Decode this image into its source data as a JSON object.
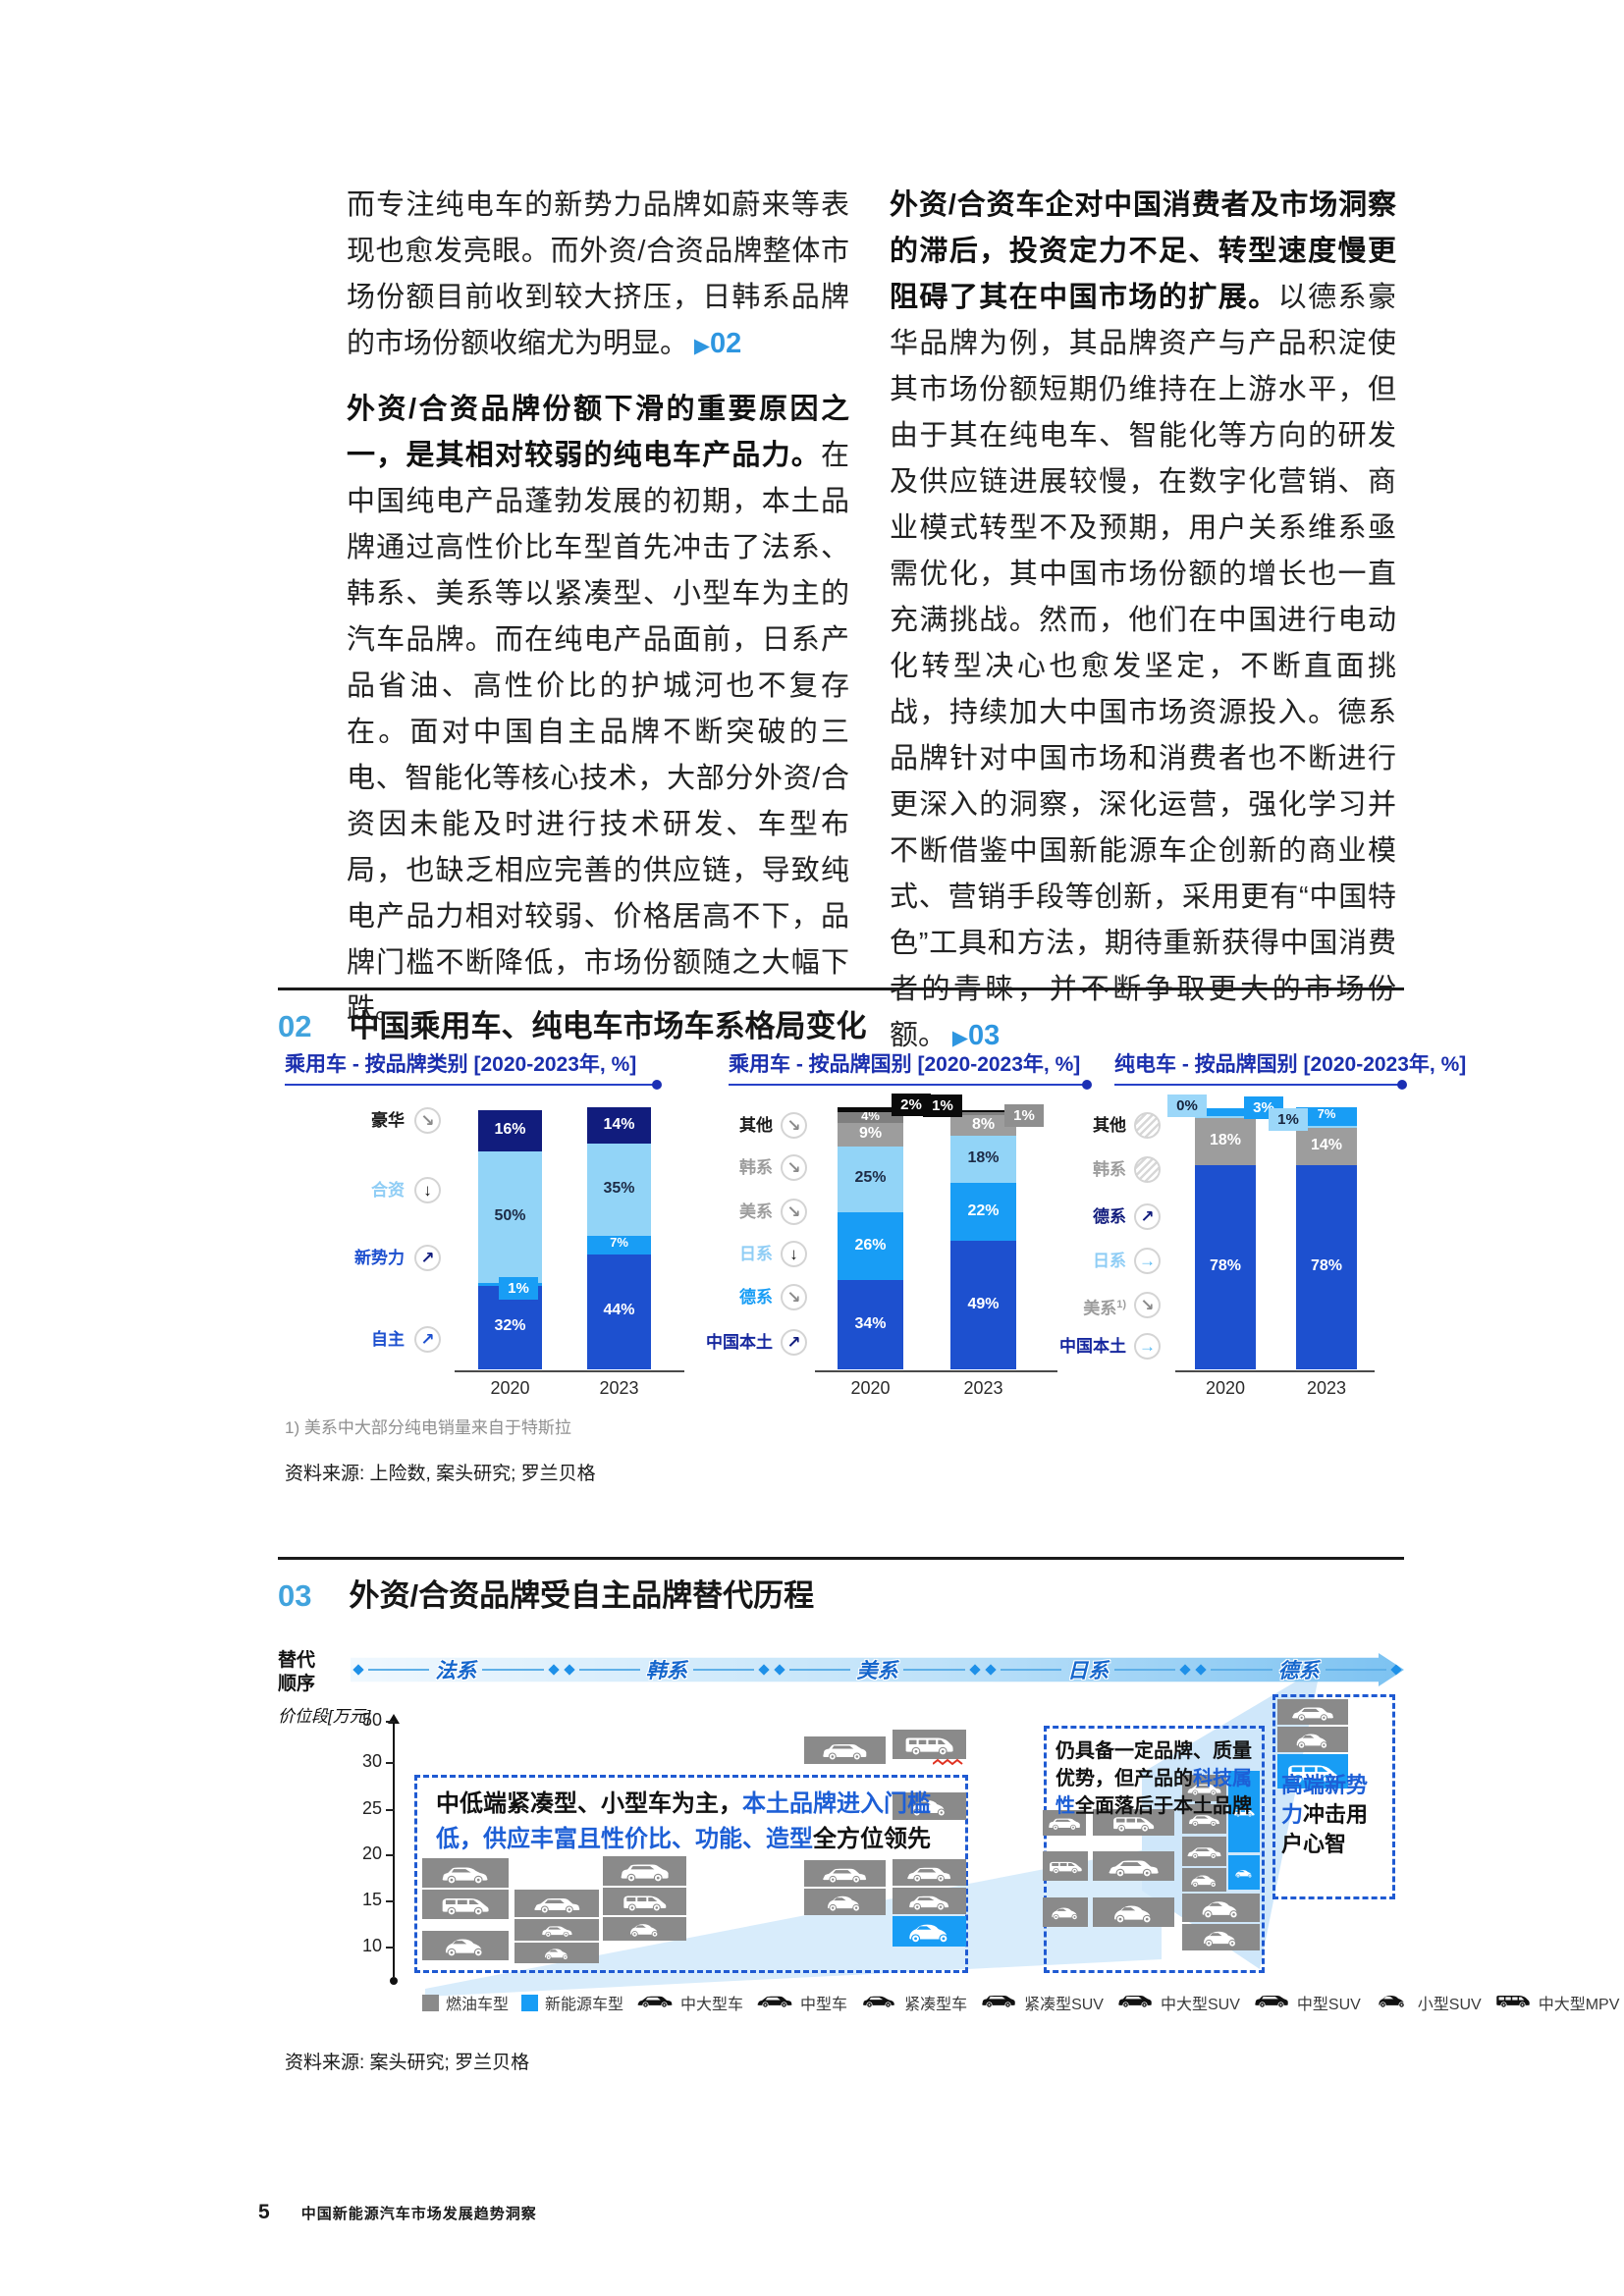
{
  "columns": {
    "left": {
      "p1": [
        {
          "t": "而专注纯电车的新势力品牌如蔚来等表现也愈发亮眼。而外资/合资品牌整体市场份额目前收到较大挤压，日韩系品牌的市场份额收缩尤为明显。",
          "s": "normal"
        },
        {
          "t": " ▶",
          "s": "marker-tri"
        },
        {
          "t": "02",
          "s": "marker-num"
        }
      ],
      "p2": [
        {
          "t": "外资/合资品牌份额下滑的重要原因之一，是其相对较弱的纯电车产品力。",
          "s": "bold"
        },
        {
          "t": "在中国纯电产品蓬勃发展的初期，本土品牌通过高性价比车型首先冲击了法系、韩系、美系等以紧凑型、小型车为主的汽车品牌。而在纯电产品面前，日系产品省油、高性价比的护城河也不复存在。面对中国自主品牌不断突破的三电、智能化等核心技术，大部分外资/合资因未能及时进行技术研发、车型布局，也缺乏相应完善的供应链，导致纯电产品力相对较弱、价格居高不下，品牌门槛不断降低，市场份额随之大幅下跌。",
          "s": "normal"
        }
      ]
    },
    "right": {
      "p1": [
        {
          "t": "外资/合资车企对中国消费者及市场洞察的滞后，投资定力不足、转型速度慢更阻碍了其在中国市场的扩展。",
          "s": "bold"
        },
        {
          "t": "以德系豪华品牌为例，其品牌资产与产品积淀使其市场份额短期仍维持在上游水平，但由于其在纯电车、智能化等方向的研发及供应链进展较慢，在数字化营销、商业模式转型不及预期，用户关系维系亟需优化，其中国市场份额的增长也一直充满挑战。然而，他们在中国进行电动化转型决心也愈发坚定，不断直面挑战，持续加大中国市场资源投入。德系品牌针对中国市场和消费者也不断进行更深入的洞察，深化运营，强化学习并不断借鉴中国新能源车企创新的商业模式、营销手段等创新，采用更有“中国特色”工具和方法，期待重新获得中国消费者的青睐，并不断争取更大的市场份额。",
          "s": "normal"
        },
        {
          "t": " ▶",
          "s": "marker-tri"
        },
        {
          "t": "03",
          "s": "marker-num"
        }
      ]
    }
  },
  "figure02": {
    "number": "02",
    "title": "中国乘用车、纯电车市场车系格局变化",
    "footnote": "1) 美系中大部分纯电销量来自于特斯拉",
    "source": "资料来源: 上险数, 案头研究; 罗兰贝格"
  },
  "figure03": {
    "number": "03",
    "title": "外资/合资品牌受自主品牌替代历程",
    "sequence_label": "替代\n顺序",
    "axis_label": "价位段[万元]",
    "source": "资料来源:  案头研究; 罗兰贝格"
  },
  "footer": {
    "page_number": "5",
    "text": "中国新能源汽车市场发展趋势洞察"
  },
  "chart_data": [
    {
      "type": "bar",
      "stacked": true,
      "title": "乘用车 - 按品牌类别 [2020-2023年, %]",
      "categories": [
        "2020",
        "2023"
      ],
      "ylim": [
        0,
        100
      ],
      "legend_position": "left",
      "series": [
        {
          "name": "豪华",
          "color": "#111c7d",
          "text_color": "#1a1a1a",
          "icon": "arrow-dr",
          "icon_color": "#8a8a8a",
          "values": [
            16,
            14
          ],
          "labels": [
            {
              "t": "16%",
              "mode": "in",
              "fg": "#ffffff"
            },
            {
              "t": "14%",
              "mode": "in",
              "fg": "#ffffff"
            }
          ]
        },
        {
          "name": "合资",
          "color": "#92d4f7",
          "text_color": "#8fcdf5",
          "icon": "arrow-d",
          "icon_color": "#111111",
          "values": [
            50,
            35
          ],
          "labels": [
            {
              "t": "50%",
              "mode": "in",
              "fg": "#1d2b46"
            },
            {
              "t": "35%",
              "mode": "in",
              "fg": "#1d2b46"
            }
          ]
        },
        {
          "name": "新势力",
          "color": "#189df5",
          "text_color": "#1d50cf",
          "icon": "arrow-ur",
          "icon_color": "#111c7d",
          "values": [
            1,
            7
          ],
          "labels": [
            {
              "t": "1%",
              "mode": "callout-in-right",
              "bg": "#189df5",
              "fg": "#ffffff",
              "dy": 2
            },
            {
              "t": "7%",
              "mode": "in",
              "fg": "#ffffff"
            }
          ]
        },
        {
          "name": "自主",
          "color": "#1d50cf",
          "text_color": "#1d50cf",
          "icon": "arrow-ur",
          "icon_color": "#1d50cf",
          "values": [
            32,
            44
          ],
          "labels": [
            {
              "t": "32%",
              "mode": "in",
              "fg": "#ffffff"
            },
            {
              "t": "44%",
              "mode": "in",
              "fg": "#ffffff"
            }
          ]
        }
      ]
    },
    {
      "type": "bar",
      "stacked": true,
      "title": "乘用车 - 按品牌国别 [2020-2023年, %]",
      "categories": [
        "2020",
        "2023"
      ],
      "ylim": [
        0,
        100
      ],
      "legend_position": "left",
      "series": [
        {
          "name": "其他",
          "color": "#0a0a0a",
          "text_color": "#1a1a1a",
          "icon": "arrow-dr",
          "icon_color": "#8a8a8a",
          "values": [
            2,
            1
          ],
          "labels": [
            {
              "t": "2%",
              "mode": "callout-right",
              "bg": "#0a0a0a",
              "fg": "#ffffff",
              "dy": -6
            },
            {
              "t": "1%",
              "mode": "callout-left",
              "bg": "#0a0a0a",
              "fg": "#ffffff",
              "dy": -8
            }
          ]
        },
        {
          "name": "韩系",
          "color": "#7f7f7f",
          "text_color": "#9d9d9d",
          "icon": "arrow-dr",
          "icon_color": "#8a8a8a",
          "values": [
            4,
            1
          ],
          "labels": [
            {
              "t": "4%",
              "mode": "in",
              "fg": "#ffffff"
            },
            {
              "t": "1%",
              "mode": "callout-right",
              "bg": "#8f8f8f",
              "fg": "#ffffff",
              "dy": 0
            }
          ]
        },
        {
          "name": "美系",
          "color": "#9d9d9d",
          "text_color": "#9d9d9d",
          "icon": "arrow-dr",
          "icon_color": "#8a8a8a",
          "values": [
            9,
            8
          ],
          "labels": [
            {
              "t": "9%",
              "mode": "in",
              "fg": "#ffffff"
            },
            {
              "t": "8%",
              "mode": "in",
              "fg": "#ffffff"
            }
          ]
        },
        {
          "name": "日系",
          "color": "#92d4f7",
          "text_color": "#8fcdf5",
          "icon": "arrow-d",
          "icon_color": "#111111",
          "values": [
            25,
            18
          ],
          "labels": [
            {
              "t": "25%",
              "mode": "in",
              "fg": "#1d2b46"
            },
            {
              "t": "18%",
              "mode": "in",
              "fg": "#1d2b46"
            }
          ]
        },
        {
          "name": "德系",
          "color": "#189df5",
          "text_color": "#189df5",
          "icon": "arrow-dr",
          "icon_color": "#8a8a8a",
          "values": [
            26,
            22
          ],
          "labels": [
            {
              "t": "26%",
              "mode": "in",
              "fg": "#ffffff"
            },
            {
              "t": "22%",
              "mode": "in",
              "fg": "#ffffff"
            }
          ]
        },
        {
          "name": "中国本土",
          "color": "#1d50cf",
          "text_color": "#16279e",
          "icon": "arrow-ur",
          "icon_color": "#111c7d",
          "values": [
            34,
            49
          ],
          "labels": [
            {
              "t": "34%",
              "mode": "in",
              "fg": "#ffffff"
            },
            {
              "t": "49%",
              "mode": "in",
              "fg": "#ffffff"
            }
          ]
        }
      ]
    },
    {
      "type": "bar",
      "stacked": true,
      "title": "纯电车 - 按品牌国别 [2020-2023年, %]",
      "categories": [
        "2020",
        "2023"
      ],
      "ylim": [
        0,
        100
      ],
      "legend_position": "left",
      "footnote_ref": "1) 美系中大部分纯电销量来自于特斯拉",
      "series": [
        {
          "name": "其他",
          "color": null,
          "text_color": "#1a1a1a",
          "icon": "hatch",
          "values": [
            null,
            null
          ],
          "labels": [
            null,
            null
          ]
        },
        {
          "name": "韩系",
          "color": null,
          "text_color": "#9d9d9d",
          "icon": "hatch",
          "values": [
            null,
            null
          ],
          "labels": [
            null,
            null
          ]
        },
        {
          "name": "德系",
          "color": "#189df5",
          "text_color": "#111c7d",
          "icon": "arrow-ur",
          "icon_color": "#111c7d",
          "values": [
            3,
            7
          ],
          "labels": [
            {
              "t": "3%",
              "mode": "callout-right",
              "bg": "#189df5",
              "fg": "#ffffff",
              "dy": -4
            },
            {
              "t": "7%",
              "mode": "in",
              "fg": "#ffffff"
            }
          ]
        },
        {
          "name": "日系",
          "color": "#92d4f7",
          "text_color": "#8fcdf5",
          "icon": "arrow-r",
          "icon_color": "#55b8f2",
          "values": [
            0,
            1
          ],
          "labels": [
            {
              "t": "0%",
              "mode": "callout-left",
              "bg": "#9bd7f9",
              "fg": "#16233c",
              "dy": -14
            },
            {
              "t": "1%",
              "mode": "callout-left",
              "bg": "#9bd7f9",
              "fg": "#16233c",
              "dy": -10
            }
          ]
        },
        {
          "name": "美系",
          "sup": "1)",
          "color": "#9d9d9d",
          "text_color": "#9d9d9d",
          "icon": "arrow-dr",
          "icon_color": "#8a8a8a",
          "values": [
            18,
            14
          ],
          "labels": [
            {
              "t": "18%",
              "mode": "in",
              "fg": "#ffffff"
            },
            {
              "t": "14%",
              "mode": "in",
              "fg": "#ffffff"
            }
          ]
        },
        {
          "name": "中国本土",
          "color": "#1d50cf",
          "text_color": "#16279e",
          "icon": "arrow-r",
          "icon_color": "#55b8f2",
          "values": [
            78,
            78
          ],
          "labels": [
            {
              "t": "78%",
              "mode": "in",
              "fg": "#ffffff"
            },
            {
              "t": "78%",
              "mode": "in",
              "fg": "#ffffff"
            }
          ]
        }
      ]
    },
    {
      "type": "diagram",
      "title": "外资/合资品牌受自主品牌替代历程",
      "sequence": [
        "法系",
        "韩系",
        "美系",
        "日系",
        "德系"
      ],
      "y_ticks": [
        50,
        30,
        25,
        20,
        15,
        10
      ],
      "callouts": {
        "left": [
          {
            "t": "中低端紧凑型、小型车为主，",
            "s": "black"
          },
          {
            "t": "本土品牌进入门槛低，供应丰富且性价比、功能、造型",
            "s": "blue"
          },
          {
            "t": "全方位领先",
            "s": "black"
          }
        ],
        "middle": [
          {
            "t": "仍具备一定品牌、质量优势，但产品的",
            "s": "black"
          },
          {
            "t": "科技属性",
            "s": "blue"
          },
          {
            "t": "全面落后于本土品牌",
            "s": "black"
          }
        ],
        "right": [
          {
            "t": "高端新势力",
            "s": "blue"
          },
          {
            "t": "冲击用户心智",
            "s": "black"
          }
        ]
      },
      "legend": [
        {
          "label": "燃油车型",
          "swatch": "#8a8a8a"
        },
        {
          "label": "新能源车型",
          "swatch": "#189df5"
        },
        {
          "label": "中大型车",
          "icon": "sedan"
        },
        {
          "label": "中型车",
          "icon": "sedan"
        },
        {
          "label": "紧凑型车",
          "icon": "hatch"
        },
        {
          "label": "紧凑型SUV",
          "icon": "suv"
        },
        {
          "label": "中大型SUV",
          "icon": "suv"
        },
        {
          "label": "中型SUV",
          "icon": "suv"
        },
        {
          "label": "小型SUV",
          "icon": "small"
        },
        {
          "label": "中大型MPV",
          "icon": "van"
        }
      ],
      "cars": [
        {
          "x": 147,
          "y": 217,
          "w": 88,
          "h": 30,
          "icon": "hatch",
          "type": "fuel"
        },
        {
          "x": 147,
          "y": 249,
          "w": 88,
          "h": 30,
          "icon": "mpv",
          "type": "fuel"
        },
        {
          "x": 147,
          "y": 291,
          "w": 88,
          "h": 30,
          "icon": "small",
          "type": "fuel"
        },
        {
          "x": 241,
          "y": 249,
          "w": 86,
          "h": 28,
          "icon": "sedan",
          "type": "fuel"
        },
        {
          "x": 241,
          "y": 279,
          "w": 86,
          "h": 22,
          "icon": "hatch",
          "type": "fuel"
        },
        {
          "x": 241,
          "y": 303,
          "w": 86,
          "h": 21,
          "icon": "small",
          "type": "fuel"
        },
        {
          "x": 331,
          "y": 215,
          "w": 85,
          "h": 30,
          "icon": "suv",
          "type": "fuel"
        },
        {
          "x": 331,
          "y": 247,
          "w": 85,
          "h": 28,
          "icon": "mpv",
          "type": "fuel"
        },
        {
          "x": 331,
          "y": 277,
          "w": 85,
          "h": 24,
          "icon": "small",
          "type": "fuel"
        },
        {
          "x": 536,
          "y": 93,
          "w": 83,
          "h": 28,
          "icon": "suv",
          "type": "fuel"
        },
        {
          "x": 626,
          "y": 86,
          "w": 75,
          "h": 30,
          "icon": "van",
          "type": "fuel",
          "red": true
        },
        {
          "x": 626,
          "y": 150,
          "w": 75,
          "h": 28,
          "icon": "small",
          "type": "fuel"
        },
        {
          "x": 536,
          "y": 219,
          "w": 83,
          "h": 27,
          "icon": "sedan",
          "type": "fuel"
        },
        {
          "x": 536,
          "y": 248,
          "w": 83,
          "h": 27,
          "icon": "small",
          "type": "fuel"
        },
        {
          "x": 626,
          "y": 218,
          "w": 75,
          "h": 27,
          "icon": "sedan",
          "type": "fuel"
        },
        {
          "x": 626,
          "y": 247,
          "w": 75,
          "h": 27,
          "icon": "hatch",
          "type": "fuel"
        },
        {
          "x": 626,
          "y": 276,
          "w": 75,
          "h": 31,
          "icon": "small",
          "type": "nev"
        },
        {
          "x": 779,
          "y": 168,
          "w": 44,
          "h": 26,
          "icon": "suv",
          "type": "fuel"
        },
        {
          "x": 779,
          "y": 210,
          "w": 46,
          "h": 30,
          "icon": "mpv",
          "type": "fuel"
        },
        {
          "x": 779,
          "y": 257,
          "w": 46,
          "h": 30,
          "icon": "small",
          "type": "fuel"
        },
        {
          "x": 830,
          "y": 167,
          "w": 83,
          "h": 27,
          "icon": "mpv",
          "type": "fuel"
        },
        {
          "x": 830,
          "y": 210,
          "w": 83,
          "h": 30,
          "icon": "sedan",
          "type": "fuel"
        },
        {
          "x": 830,
          "y": 257,
          "w": 83,
          "h": 30,
          "icon": "small",
          "type": "fuel"
        },
        {
          "x": 921,
          "y": 132,
          "w": 45,
          "h": 27,
          "icon": "sedan",
          "type": "fuel"
        },
        {
          "x": 921,
          "y": 162,
          "w": 45,
          "h": 30,
          "icon": "hatch",
          "type": "fuel"
        },
        {
          "x": 921,
          "y": 195,
          "w": 45,
          "h": 30,
          "icon": "sedan",
          "type": "fuel"
        },
        {
          "x": 921,
          "y": 227,
          "w": 45,
          "h": 24,
          "icon": "small",
          "type": "fuel"
        },
        {
          "x": 968,
          "y": 128,
          "w": 32,
          "h": 83,
          "icon": "mpv",
          "type": "nev"
        },
        {
          "x": 968,
          "y": 214,
          "w": 32,
          "h": 35,
          "icon": "small",
          "type": "nev"
        },
        {
          "x": 921,
          "y": 253,
          "w": 79,
          "h": 29,
          "icon": "small",
          "type": "fuel"
        },
        {
          "x": 921,
          "y": 284,
          "w": 79,
          "h": 27,
          "icon": "small",
          "type": "fuel"
        },
        {
          "x": 1018,
          "y": 55,
          "w": 72,
          "h": 26,
          "icon": "sedan",
          "type": "fuel"
        },
        {
          "x": 1018,
          "y": 83,
          "w": 72,
          "h": 26,
          "icon": "small",
          "type": "fuel"
        },
        {
          "x": 1018,
          "y": 111,
          "w": 72,
          "h": 35,
          "icon": "mpv",
          "type": "nev"
        }
      ],
      "colors": {
        "fuel": "#8a8a8a",
        "nev": "#189df5"
      }
    }
  ]
}
